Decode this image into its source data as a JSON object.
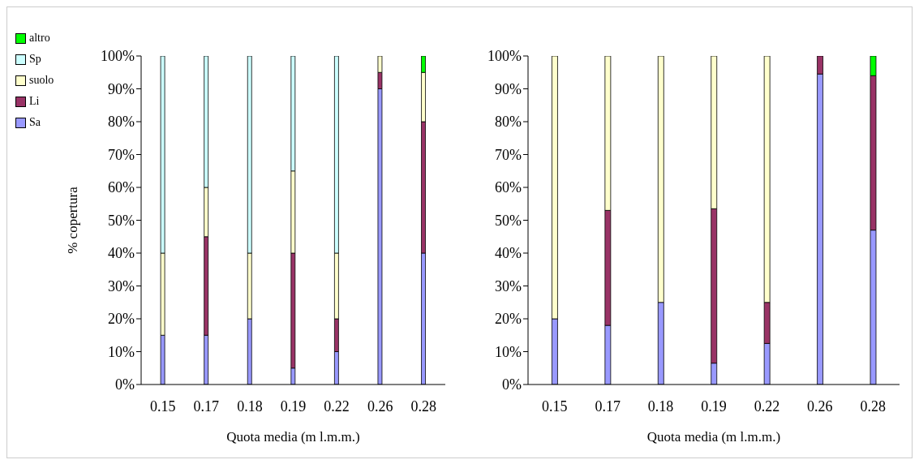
{
  "chart_data": [
    {
      "type": "bar",
      "stacked": true,
      "xlabel": "Quota media (m l.m.m.)",
      "ylabel": "% copertura",
      "categories": [
        "0.15",
        "0.17",
        "0.18",
        "0.19",
        "0.22",
        "0.26",
        "0.28"
      ],
      "series": [
        {
          "name": "Sa",
          "color": "#9999ff",
          "values": [
            15,
            15,
            20,
            5,
            10,
            90,
            40
          ]
        },
        {
          "name": "Li",
          "color": "#993366",
          "values": [
            null,
            30,
            null,
            35,
            10,
            5,
            40
          ]
        },
        {
          "name": "suolo",
          "color": "#ffffcc",
          "values": [
            25,
            15,
            20,
            25,
            20,
            5,
            15
          ]
        },
        {
          "name": "Sp",
          "color": "#ccffff",
          "values": [
            60,
            40,
            60,
            35,
            60,
            null,
            null
          ]
        },
        {
          "name": "altro",
          "color": "#00ff00",
          "values": [
            null,
            null,
            null,
            null,
            null,
            null,
            5
          ]
        }
      ],
      "ylim": [
        0,
        100
      ],
      "yticks": [
        {
          "value": 0,
          "label": "0%"
        },
        {
          "value": 10,
          "label": "10%"
        },
        {
          "value": 20,
          "label": "20%"
        },
        {
          "value": 30,
          "label": "30%"
        },
        {
          "value": 40,
          "label": "40%"
        },
        {
          "value": 50,
          "label": "50%"
        },
        {
          "value": 60,
          "label": "60%"
        },
        {
          "value": 70,
          "label": "70%"
        },
        {
          "value": 80,
          "label": "80%"
        },
        {
          "value": 90,
          "label": "90%"
        },
        {
          "value": 100,
          "label": "100%"
        }
      ],
      "grid": false,
      "legend": "top left"
    },
    {
      "type": "bar",
      "stacked": true,
      "xlabel": "Quota media (m l.m.m.)",
      "categories": [
        "0.15",
        "0.17",
        "0.18",
        "0.19",
        "0.22",
        "0.26",
        "0.28"
      ],
      "series": [
        {
          "color": "#9999ff",
          "values": [
            20,
            18,
            25,
            6.5,
            12.5,
            94.5,
            47
          ]
        },
        {
          "color": "#993366",
          "values": [
            null,
            35,
            null,
            47,
            12.5,
            5.5,
            47
          ]
        },
        {
          "color": "#ffffcc",
          "values": [
            80,
            47,
            75,
            46.5,
            75,
            null,
            null
          ]
        },
        {
          "color": "#00ff00",
          "values": [
            null,
            null,
            null,
            null,
            null,
            null,
            6
          ]
        }
      ],
      "ylim": [
        0,
        100
      ],
      "yticks": [
        {
          "value": 0,
          "label": "0%"
        },
        {
          "value": 10,
          "label": "10%"
        },
        {
          "value": 20,
          "label": "20%"
        },
        {
          "value": 30,
          "label": "30%"
        },
        {
          "value": 40,
          "label": "40%"
        },
        {
          "value": 50,
          "label": "50%"
        },
        {
          "value": 60,
          "label": "60%"
        },
        {
          "value": 70,
          "label": "70%"
        },
        {
          "value": 80,
          "label": "80%"
        },
        {
          "value": 90,
          "label": "90%"
        },
        {
          "value": 100,
          "label": "100%"
        }
      ],
      "grid": false
    }
  ]
}
